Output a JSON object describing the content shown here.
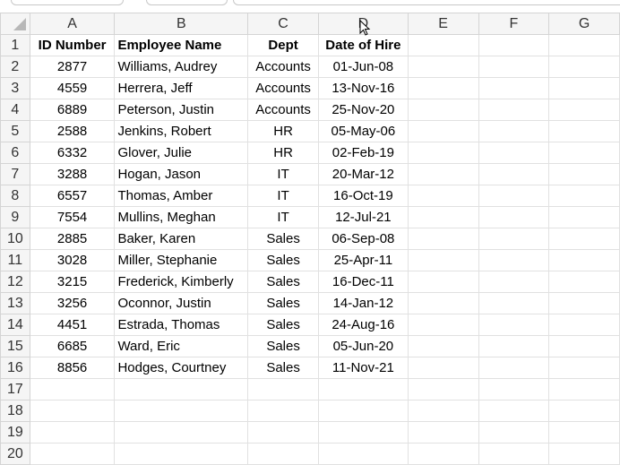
{
  "columns": [
    "A",
    "B",
    "C",
    "D",
    "E",
    "F",
    "G"
  ],
  "headers": [
    "ID Number",
    "Employee Name",
    "Dept",
    "Date of Hire"
  ],
  "rows": [
    [
      "2877",
      "Williams, Audrey",
      "Accounts",
      "01-Jun-08"
    ],
    [
      "4559",
      "Herrera, Jeff",
      "Accounts",
      "13-Nov-16"
    ],
    [
      "6889",
      "Peterson, Justin",
      "Accounts",
      "25-Nov-20"
    ],
    [
      "2588",
      "Jenkins, Robert",
      "HR",
      "05-May-06"
    ],
    [
      "6332",
      "Glover, Julie",
      "HR",
      "02-Feb-19"
    ],
    [
      "3288",
      "Hogan, Jason",
      "IT",
      "20-Mar-12"
    ],
    [
      "6557",
      "Thomas, Amber",
      "IT",
      "16-Oct-19"
    ],
    [
      "7554",
      "Mullins, Meghan",
      "IT",
      "12-Jul-21"
    ],
    [
      "2885",
      "Baker, Karen",
      "Sales",
      "06-Sep-08"
    ],
    [
      "3028",
      "Miller, Stephanie",
      "Sales",
      "25-Apr-11"
    ],
    [
      "3215",
      "Frederick, Kimberly",
      "Sales",
      "16-Dec-11"
    ],
    [
      "3256",
      "Oconnor, Justin",
      "Sales",
      "14-Jan-12"
    ],
    [
      "4451",
      "Estrada, Thomas",
      "Sales",
      "24-Aug-16"
    ],
    [
      "6685",
      "Ward, Eric",
      "Sales",
      "05-Jun-20"
    ],
    [
      "8856",
      "Hodges, Courtney",
      "Sales",
      "11-Nov-21"
    ]
  ],
  "row_count": 20
}
